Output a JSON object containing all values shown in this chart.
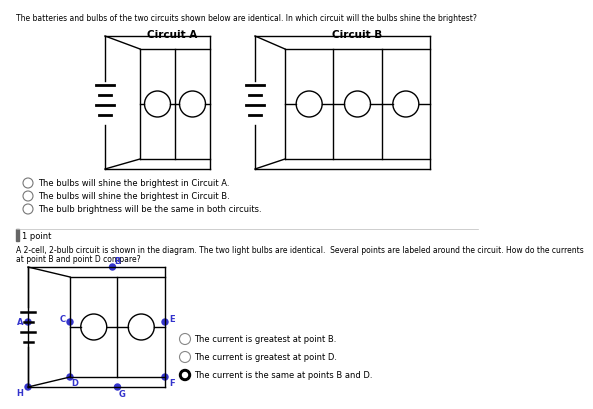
{
  "title_text": "The batteries and bulbs of the two circuits shown below are identical. In which circuit will the bulbs shine the brightest?",
  "circuit_a_label": "Circuit A",
  "circuit_b_label": "Circuit B",
  "options_q1": [
    "The bulbs will shine the brightest in Circuit A.",
    "The bulbs will shine the brightest in Circuit B.",
    "The bulb brightness will be the same in both circuits."
  ],
  "q2_label": "1 point",
  "q2_text": "A 2-cell, 2-bulb circuit is shown in the diagram. The two light bulbs are identical.  Several points are labeled around the circuit. How do the currents at point B and point D compare?",
  "options_q2": [
    "The current is greatest at point B.",
    "The current is greatest at point D.",
    "The current is the same at points B and D."
  ],
  "selected_q2": 2,
  "bg_color": "#ffffff",
  "text_color": "#000000",
  "blue_dot_color": "#3333cc",
  "line_color": "#000000"
}
